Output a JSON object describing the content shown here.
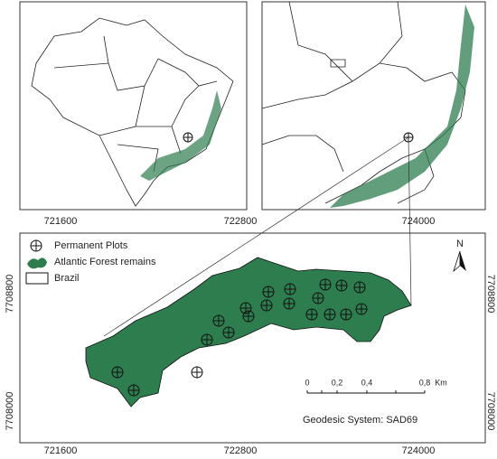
{
  "x_ticks_top": [
    "721600",
    "722800",
    "724000"
  ],
  "x_ticks_bottom": [
    "721600",
    "722800",
    "724000"
  ],
  "y_ticks_left": [
    "7708800",
    "7708000"
  ],
  "y_ticks_right": [
    "7708800",
    "7708000"
  ],
  "legend": {
    "plots": "Permanent Plots",
    "forest": "Atlantic Forest remains",
    "brazil": "Brazil"
  },
  "north": "N",
  "scale_bar": {
    "labels": [
      "0",
      "0,2",
      "0,4",
      "0,8"
    ],
    "unit": "Km"
  },
  "datum": "Geodesic System: SAD69"
}
